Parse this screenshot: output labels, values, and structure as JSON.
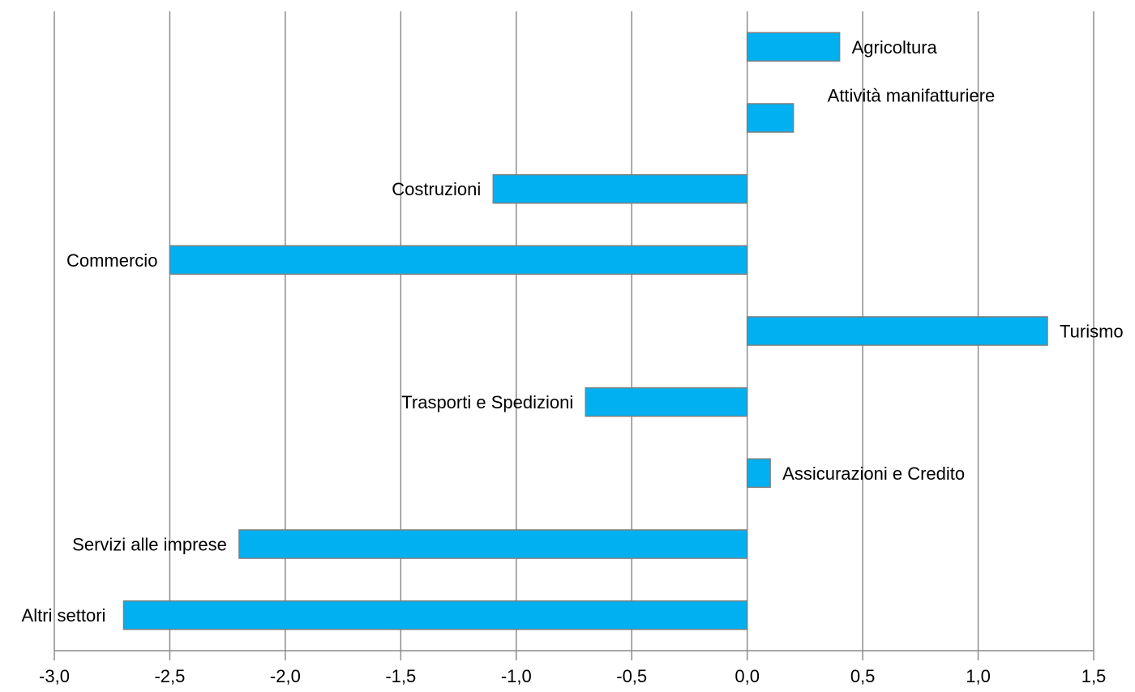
{
  "chart_data": {
    "type": "bar",
    "orientation": "horizontal",
    "title": "",
    "xlabel": "",
    "ylabel": "",
    "xlim": [
      -3.0,
      1.5
    ],
    "x_ticks": [
      "-3,0",
      "-2,5",
      "-2,0",
      "-1,5",
      "-1,0",
      "-0,5",
      "0,0",
      "0,5",
      "1,0",
      "1,5"
    ],
    "grid": "vertical",
    "legend": "none",
    "bar_color": "#00B0F0",
    "bar_border_color": "#7f7f7f",
    "grid_color": "#8c8c8c",
    "categories": [
      "Agricoltura",
      "Attività manifatturiere",
      "Costruzioni",
      "Commercio",
      "Turismo",
      "Trasporti e Spedizioni",
      "Assicurazioni e Credito",
      "Servizi alle imprese",
      "Altri settori"
    ],
    "values": [
      0.4,
      0.2,
      -1.1,
      -2.5,
      1.3,
      -0.7,
      0.1,
      -2.2,
      -2.7
    ]
  }
}
